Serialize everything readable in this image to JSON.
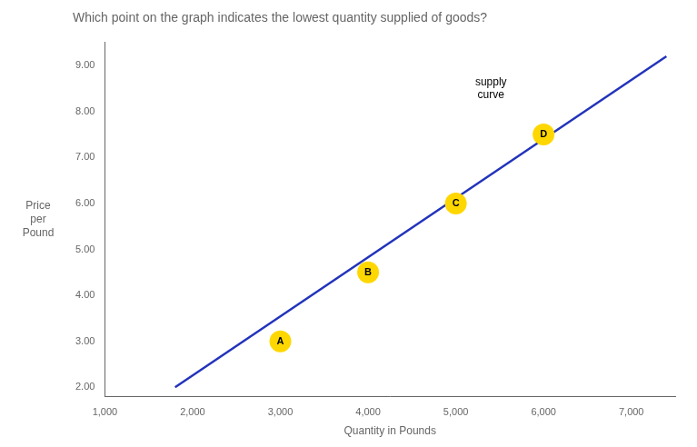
{
  "chart_data": {
    "type": "scatter",
    "title": "Which point on the graph indicates the lowest quantity supplied of goods?",
    "xlabel": "Quantity in Pounds",
    "ylabel": [
      "Price",
      "per",
      "Pound"
    ],
    "xlim": [
      1000,
      7500
    ],
    "ylim": [
      1.8,
      9.5
    ],
    "xticks": [
      {
        "value": 1000,
        "label": "1,000"
      },
      {
        "value": 2000,
        "label": "2,000"
      },
      {
        "value": 3000,
        "label": "3,000"
      },
      {
        "value": 4000,
        "label": "4,000"
      },
      {
        "value": 5000,
        "label": "5,000"
      },
      {
        "value": 6000,
        "label": "6,000"
      },
      {
        "value": 7000,
        "label": "7,000"
      }
    ],
    "yticks": [
      {
        "value": 2.0,
        "label": "2.00"
      },
      {
        "value": 3.0,
        "label": "3.00"
      },
      {
        "value": 4.0,
        "label": "4.00"
      },
      {
        "value": 5.0,
        "label": "5.00"
      },
      {
        "value": 6.0,
        "label": "6.00"
      },
      {
        "value": 7.0,
        "label": "7.00"
      },
      {
        "value": 8.0,
        "label": "8.00"
      },
      {
        "value": 9.0,
        "label": "9.00"
      }
    ],
    "grid": false,
    "series": [
      {
        "type": "line",
        "color": "#2233bb",
        "x": [
          1800,
          7400
        ],
        "values": [
          2.0,
          9.2
        ]
      },
      {
        "type": "scatter",
        "color": "#FFD700",
        "marker": "circle",
        "x": [
          3000,
          4000,
          5000,
          6000
        ],
        "values": [
          3.0,
          4.5,
          6.0,
          7.5
        ],
        "labels": [
          "A",
          "B",
          "C",
          "D"
        ]
      }
    ],
    "annotations": [
      {
        "text": "supply\ncurve",
        "x": 5400,
        "y": 8.75
      }
    ]
  }
}
